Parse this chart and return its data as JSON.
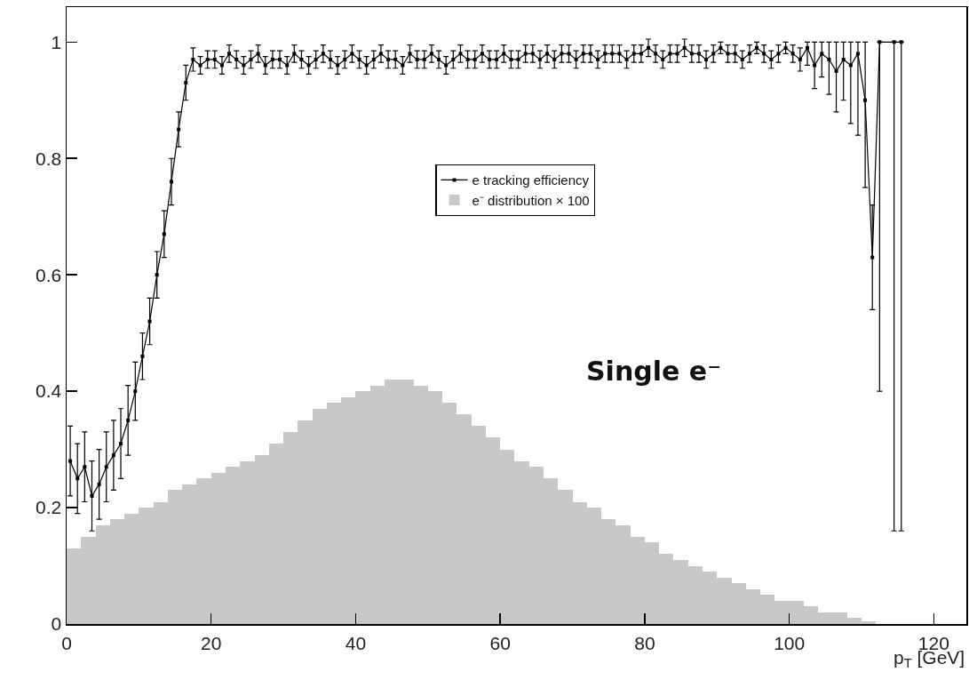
{
  "chart_data": {
    "type": "histogram",
    "xlabel": "p$_{T}$ [GeV]",
    "annotations": [
      "Single e⁻"
    ],
    "xlim": [
      0,
      124.5
    ],
    "ylim": [
      0,
      1.06
    ],
    "xticks": [
      0,
      20,
      40,
      60,
      80,
      100,
      120
    ],
    "yticks": [
      0,
      0.2,
      0.4,
      0.6,
      0.8,
      1
    ],
    "grid": false,
    "legend": "top",
    "series": [
      {
        "name": "e tracking efficiency",
        "type": "line",
        "marker": "square",
        "color": "#000000",
        "x": [
          0.5,
          1.5,
          2.5,
          3.5,
          4.5,
          5.5,
          6.5,
          7.5,
          8.5,
          9.5,
          10.5,
          11.5,
          12.5,
          13.5,
          14.5,
          15.5,
          16.5,
          17.5,
          18.5,
          19.5,
          20.5,
          21.5,
          22.5,
          23.5,
          24.5,
          25.5,
          26.5,
          27.5,
          28.5,
          29.5,
          30.5,
          31.5,
          32.5,
          33.5,
          34.5,
          35.5,
          36.5,
          37.5,
          38.5,
          39.5,
          40.5,
          41.5,
          42.5,
          43.5,
          44.5,
          45.5,
          46.5,
          47.5,
          48.5,
          49.5,
          50.5,
          51.5,
          52.5,
          53.5,
          54.5,
          55.5,
          56.5,
          57.5,
          58.5,
          59.5,
          60.5,
          61.5,
          62.5,
          63.5,
          64.5,
          65.5,
          66.5,
          67.5,
          68.5,
          69.5,
          70.5,
          71.5,
          72.5,
          73.5,
          74.5,
          75.5,
          76.5,
          77.5,
          78.5,
          79.5,
          80.5,
          81.5,
          82.5,
          83.5,
          84.5,
          85.5,
          86.5,
          87.5,
          88.5,
          89.5,
          90.5,
          91.5,
          92.5,
          93.5,
          94.5,
          95.5,
          96.5,
          97.5,
          98.5,
          99.5,
          100.5,
          101.5,
          102.5,
          103.5,
          104.5,
          105.5,
          106.5,
          107.5,
          108.5,
          109.5,
          110.5,
          111.5,
          112.5,
          114.5,
          115.5
        ],
        "values": [
          0.28,
          0.25,
          0.27,
          0.22,
          0.24,
          0.27,
          0.29,
          0.31,
          0.35,
          0.4,
          0.46,
          0.52,
          0.6,
          0.67,
          0.76,
          0.85,
          0.93,
          0.97,
          0.96,
          0.97,
          0.97,
          0.96,
          0.98,
          0.97,
          0.96,
          0.97,
          0.98,
          0.96,
          0.97,
          0.97,
          0.96,
          0.98,
          0.97,
          0.96,
          0.97,
          0.98,
          0.97,
          0.96,
          0.97,
          0.98,
          0.97,
          0.96,
          0.97,
          0.98,
          0.97,
          0.97,
          0.96,
          0.98,
          0.97,
          0.97,
          0.98,
          0.97,
          0.96,
          0.97,
          0.98,
          0.97,
          0.97,
          0.98,
          0.97,
          0.97,
          0.98,
          0.97,
          0.97,
          0.98,
          0.98,
          0.97,
          0.98,
          0.97,
          0.98,
          0.98,
          0.97,
          0.98,
          0.98,
          0.97,
          0.98,
          0.98,
          0.98,
          0.97,
          0.98,
          0.98,
          0.99,
          0.98,
          0.97,
          0.98,
          0.98,
          0.99,
          0.98,
          0.98,
          0.97,
          0.98,
          0.99,
          0.98,
          0.98,
          0.97,
          0.98,
          0.99,
          0.98,
          0.97,
          0.98,
          0.99,
          0.98,
          0.97,
          0.99,
          0.96,
          0.98,
          0.97,
          0.95,
          0.97,
          0.96,
          0.98,
          0.9,
          0.63,
          1,
          1,
          1
        ],
        "errors": [
          0.06,
          0.06,
          0.06,
          0.06,
          0.06,
          0.06,
          0.06,
          0.06,
          0.06,
          0.05,
          0.04,
          0.04,
          0.04,
          0.04,
          0.04,
          0.03,
          0.03,
          0.02,
          0.015,
          0.015,
          0.015,
          0.015,
          0.015,
          0.015,
          0.015,
          0.015,
          0.015,
          0.015,
          0.015,
          0.015,
          0.015,
          0.015,
          0.015,
          0.015,
          0.015,
          0.015,
          0.015,
          0.015,
          0.015,
          0.015,
          0.015,
          0.015,
          0.015,
          0.015,
          0.015,
          0.015,
          0.015,
          0.015,
          0.015,
          0.015,
          0.015,
          0.015,
          0.015,
          0.015,
          0.015,
          0.015,
          0.015,
          0.015,
          0.015,
          0.015,
          0.015,
          0.015,
          0.015,
          0.015,
          0.015,
          0.015,
          0.015,
          0.015,
          0.015,
          0.015,
          0.015,
          0.015,
          0.015,
          0.015,
          0.015,
          0.015,
          0.015,
          0.015,
          0.015,
          0.015,
          0.015,
          0.015,
          0.015,
          0.015,
          0.015,
          0.015,
          0.015,
          0.015,
          0.015,
          0.015,
          0.01,
          0.015,
          0.015,
          0.015,
          0.015,
          0.01,
          0.015,
          0.015,
          0.015,
          0.01,
          0.015,
          0.02,
          [
            0.96,
            1
          ],
          [
            0.92,
            1
          ],
          [
            0.94,
            1
          ],
          [
            0.91,
            1
          ],
          [
            0.88,
            1
          ],
          [
            0.9,
            1
          ],
          [
            0.86,
            1
          ],
          [
            0.84,
            1
          ],
          [
            0.75,
            1
          ],
          [
            0.54,
            0.72
          ],
          [
            0.4,
            1
          ],
          [
            0.16,
            1
          ],
          [
            0.16,
            1
          ]
        ]
      },
      {
        "name": "e⁻ distribution × 100",
        "color": "#c8c8c8",
        "bins": [
          0,
          2,
          4,
          6,
          8,
          10,
          12,
          14,
          16,
          18,
          20,
          22,
          24,
          26,
          28,
          30,
          32,
          34,
          36,
          38,
          40,
          42,
          44,
          46,
          48,
          50,
          52,
          54,
          56,
          58,
          60,
          62,
          64,
          66,
          68,
          70,
          72,
          74,
          76,
          78,
          80,
          82,
          84,
          86,
          88,
          90,
          92,
          94,
          96,
          98,
          100,
          102,
          104,
          106,
          108,
          110,
          112
        ],
        "values": [
          0.13,
          0.15,
          0.17,
          0.18,
          0.19,
          0.2,
          0.21,
          0.23,
          0.24,
          0.25,
          0.26,
          0.27,
          0.28,
          0.29,
          0.31,
          0.33,
          0.35,
          0.37,
          0.38,
          0.39,
          0.4,
          0.41,
          0.42,
          0.42,
          0.41,
          0.4,
          0.38,
          0.36,
          0.34,
          0.32,
          0.3,
          0.28,
          0.27,
          0.25,
          0.23,
          0.21,
          0.2,
          0.18,
          0.17,
          0.15,
          0.14,
          0.12,
          0.11,
          0.1,
          0.09,
          0.08,
          0.07,
          0.06,
          0.05,
          0.04,
          0.04,
          0.03,
          0.02,
          0.02,
          0.01,
          0.005
        ]
      }
    ]
  }
}
